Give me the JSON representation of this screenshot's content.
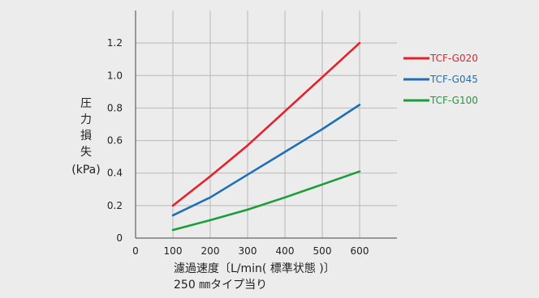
{
  "chart_data": {
    "type": "line",
    "title": "",
    "ylabel_lines": [
      "圧",
      "力",
      "損",
      "失",
      "(kPa)"
    ],
    "xlabel_lines": [
      "濾過速度〔L/min( 標準状態 )〕",
      "250 ㎜タイプ当り"
    ],
    "xlim": [
      0,
      700
    ],
    "ylim": [
      0,
      1.4
    ],
    "x_ticks": [
      0,
      100,
      200,
      300,
      400,
      500,
      600
    ],
    "x_tick_labels": [
      "0",
      "100",
      "200",
      "300",
      "400",
      "500",
      "600"
    ],
    "y_ticks": [
      0,
      0.2,
      0.4,
      0.6,
      0.8,
      1.0,
      1.2
    ],
    "y_tick_labels": [
      "0",
      "0.2",
      "0.4",
      "0.6",
      "0.8",
      "1.0",
      "1.2"
    ],
    "grid": true,
    "legend_position": "right",
    "series": [
      {
        "name": "TCF-G020",
        "color": "#e8202a",
        "x": [
          100,
          200,
          300,
          400,
          500,
          600
        ],
        "y": [
          0.2,
          0.38,
          0.57,
          0.78,
          0.99,
          1.2
        ]
      },
      {
        "name": "TCF-G045",
        "color": "#1f6fb8",
        "x": [
          100,
          200,
          300,
          400,
          500,
          600
        ],
        "y": [
          0.14,
          0.25,
          0.39,
          0.53,
          0.67,
          0.82
        ]
      },
      {
        "name": "TCF-G100",
        "color": "#1a9e3a",
        "x": [
          100,
          200,
          300,
          400,
          500,
          600
        ],
        "y": [
          0.05,
          0.11,
          0.175,
          0.25,
          0.33,
          0.41
        ]
      }
    ]
  }
}
